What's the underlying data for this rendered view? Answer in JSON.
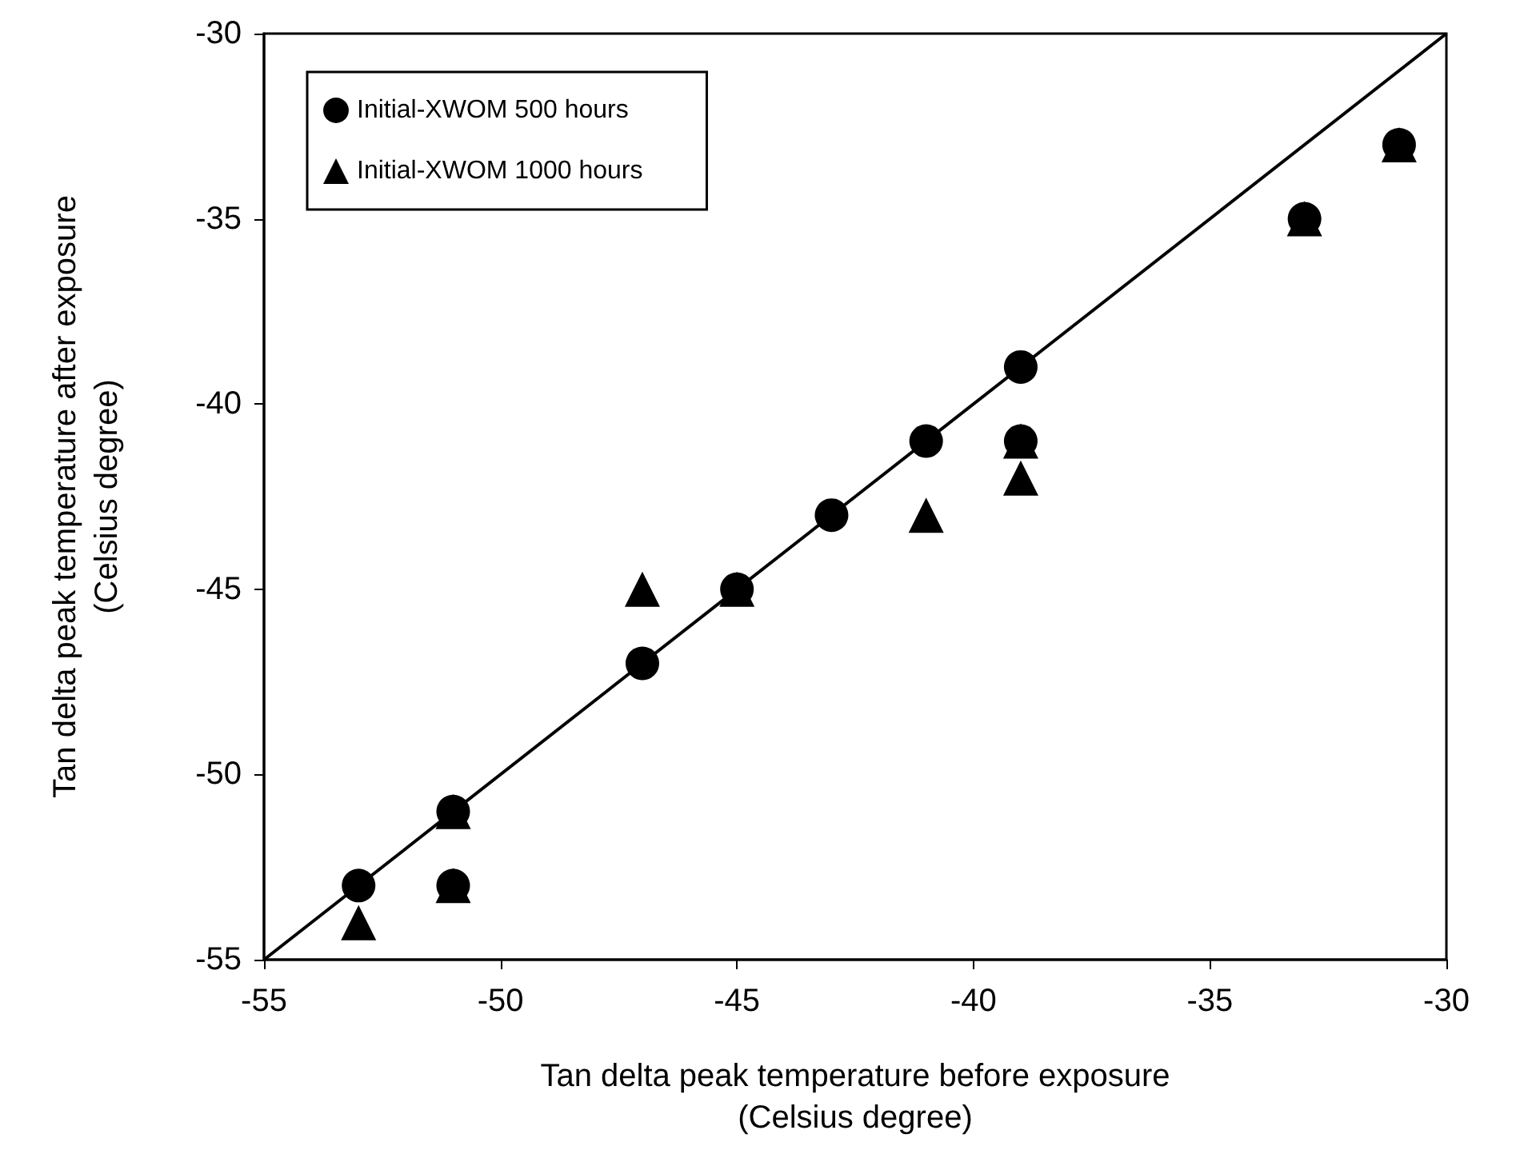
{
  "chart_data": {
    "type": "scatter",
    "xlabel": "Tan delta peak temperature before exposure\n(Celsius degree)",
    "ylabel": "Tan delta peak temperature after exposure\n(Celsius degree)",
    "xlim": [
      -55,
      -30
    ],
    "xticks": [
      -55,
      -50,
      -45,
      -40,
      -35,
      -30
    ],
    "ylim": [
      -55,
      -30
    ],
    "yticks": [
      -55,
      -50,
      -45,
      -40,
      -35,
      -30
    ],
    "grid": false,
    "legend": "top left",
    "series": [
      {
        "name": "Initial-XWOM 1000 hours",
        "color": "#000000",
        "marker": "triangle",
        "x": [
          -53,
          -51,
          -51,
          -47,
          -45,
          -41,
          -39,
          -39,
          -33,
          -31
        ],
        "values": [
          -54,
          -51,
          -53,
          -45,
          -45,
          -43,
          -41,
          -42,
          -35,
          -33
        ]
      },
      {
        "name": "Initial-XWOM 500 hours",
        "color": "#000000",
        "marker": "circle",
        "x": [
          -53,
          -51,
          -51,
          -47,
          -45,
          -43,
          -41,
          -39,
          -39,
          -33,
          -31
        ],
        "values": [
          -53,
          -51,
          -53,
          -47,
          -45,
          -43,
          -41,
          -39,
          -41,
          -35,
          -33
        ]
      },
      {
        "type": "line",
        "color": "#000000",
        "marker": "none",
        "line_style": "solid",
        "x": [
          -55,
          -30
        ],
        "values": [
          -55,
          -30
        ]
      }
    ]
  }
}
